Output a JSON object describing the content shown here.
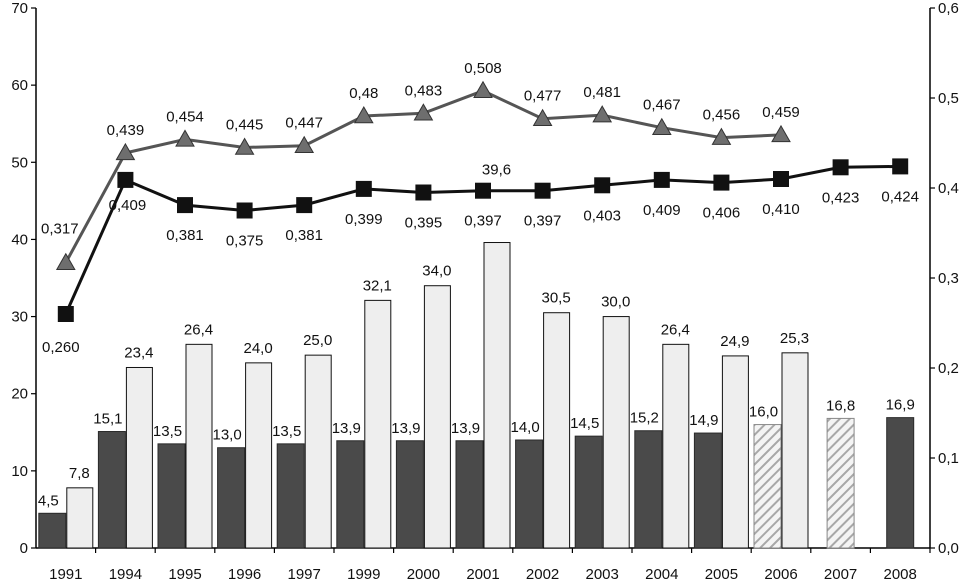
{
  "chart_data": {
    "type": "bar",
    "title": "",
    "xlabel": "",
    "ylabel": "",
    "categories": [
      "1991",
      "1994",
      "1995",
      "1996",
      "1997",
      "1999",
      "2000",
      "2001",
      "2002",
      "2003",
      "2004",
      "2005",
      "2006",
      "2007",
      "2008"
    ],
    "bars": [
      {
        "name": "",
        "axis": "left",
        "values": [
          4.5,
          15.1,
          13.5,
          13.0,
          13.5,
          13.9,
          13.9,
          13.9,
          14.0,
          14.5,
          15.2,
          14.9,
          16.0,
          16.8,
          16.9
        ],
        "labels": [
          "4,5",
          "15,1",
          "13,5",
          "13,0",
          "13,5",
          "13,9",
          "13,9",
          "13,9",
          "14,0",
          "14,5",
          "15,2",
          "14,9",
          "16,0",
          "16,8",
          "16,9"
        ],
        "hatched_from_index": 12,
        "hatched_until_index": 13,
        "color": "#4a4a4a",
        "hatch_color": "#a8a8a8"
      },
      {
        "name": "",
        "axis": "left",
        "values": [
          7.8,
          23.4,
          26.4,
          24.0,
          25.0,
          32.1,
          34.0,
          39.6,
          30.5,
          30.0,
          26.4,
          24.9,
          25.3,
          null,
          null
        ],
        "labels": [
          "7,8",
          "23,4",
          "26,4",
          "24,0",
          "25,0",
          "32,1",
          "34,0",
          "39,6",
          "30,5",
          "30,0",
          "26,4",
          "24,9",
          "25,3",
          "",
          ""
        ],
        "color": "#eeeeee"
      }
    ],
    "lines": [
      {
        "name": "",
        "axis": "right",
        "marker": "triangle",
        "values": [
          0.317,
          0.439,
          0.454,
          0.445,
          0.447,
          0.48,
          0.483,
          0.508,
          0.477,
          0.481,
          0.467,
          0.456,
          0.459,
          null,
          null
        ],
        "labels": [
          "0,317",
          "0,439",
          "0,454",
          "0,445",
          "0,447",
          "0,48",
          "0,483",
          "0,508",
          "0,477",
          "0,481",
          "0,467",
          "0,456",
          "0,459",
          "",
          ""
        ],
        "color": "#555555"
      },
      {
        "name": "",
        "axis": "right",
        "marker": "square",
        "values": [
          0.26,
          0.409,
          0.381,
          0.375,
          0.381,
          0.399,
          0.395,
          0.397,
          0.397,
          0.403,
          0.409,
          0.406,
          0.41,
          0.423,
          0.424
        ],
        "labels": [
          "0,260",
          "0,409",
          "0,381",
          "0,375",
          "0,381",
          "0,399",
          "0,395",
          "0,397",
          "0,397",
          "0,403",
          "0,409",
          "0,406",
          "0,410",
          "0,423",
          "0,424"
        ],
        "color": "#111111"
      }
    ],
    "y_left": {
      "ylim": [
        0,
        70
      ],
      "ticks": [
        "0",
        "10",
        "20",
        "30",
        "40",
        "50",
        "60",
        "70"
      ]
    },
    "y_right": {
      "ylim": [
        0,
        0.6
      ],
      "ticks": [
        "0,0",
        "0,1",
        "0,2",
        "0,3",
        "0,4",
        "0,5",
        "0,6"
      ]
    },
    "grid": false,
    "legend": "none"
  }
}
